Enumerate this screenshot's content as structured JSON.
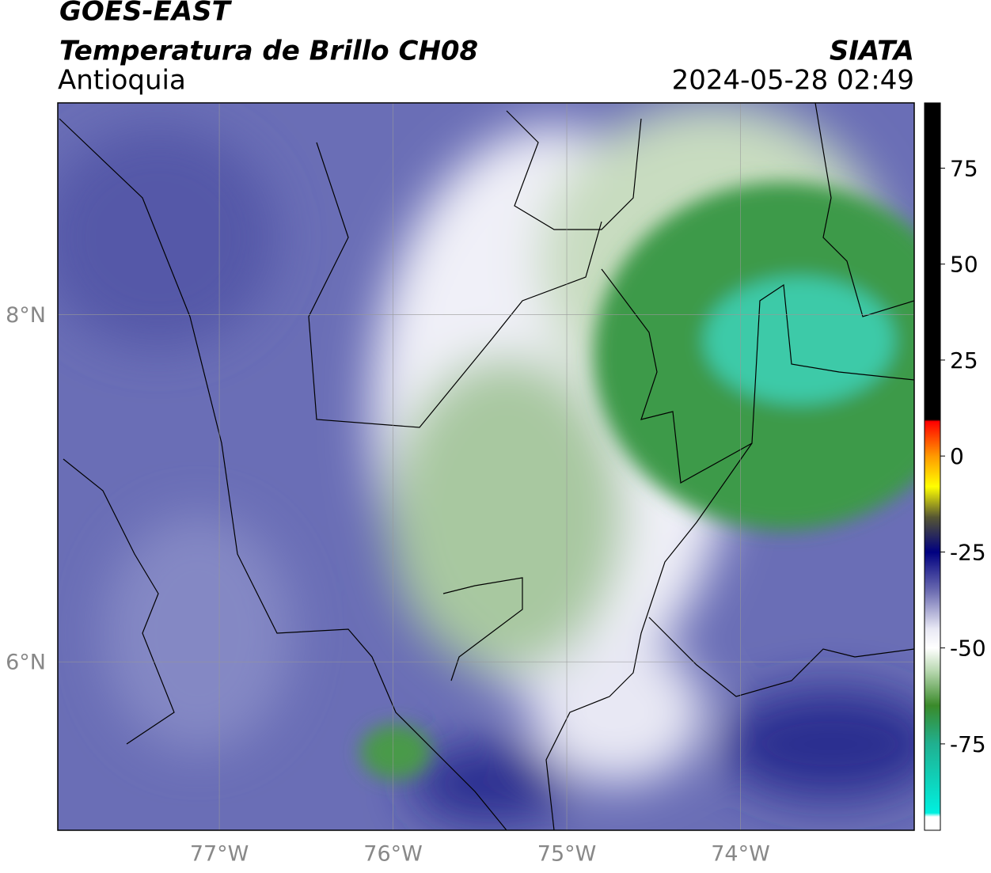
{
  "map": {
    "satellite": "GOES-EAST",
    "product": "Temperatura de Brillo CH08",
    "region": "Antioquia",
    "source": "SIATA",
    "datetime": "2024-05-28 02:49",
    "xlim": [
      -77.93,
      -73.0
    ],
    "ylim": [
      5.03,
      9.22
    ],
    "xticks": [
      {
        "value": -77,
        "label": "77°W"
      },
      {
        "value": -76,
        "label": "76°W"
      },
      {
        "value": -75,
        "label": "75°W"
      },
      {
        "value": -74,
        "label": "74°W"
      }
    ],
    "yticks": [
      {
        "value": 6,
        "label": "6°N"
      },
      {
        "value": 8,
        "label": "8°N"
      }
    ],
    "grid": true,
    "colorbar": {
      "lim": [
        -97.5,
        92
      ],
      "ticks": [
        -75,
        -50,
        -25,
        0,
        25,
        50,
        75
      ],
      "colormap": [
        [
          92,
          "#000000"
        ],
        [
          9.5,
          "#000000"
        ],
        [
          9,
          "#ff0000"
        ],
        [
          0,
          "#ff9900"
        ],
        [
          -8,
          "#ffff00"
        ],
        [
          -16,
          "#555533"
        ],
        [
          -25,
          "#000080"
        ],
        [
          -35,
          "#6a6ab0"
        ],
        [
          -45,
          "#e8e8f4"
        ],
        [
          -50,
          "#ffffff"
        ],
        [
          -56,
          "#b8d8b0"
        ],
        [
          -65,
          "#3a8a2a"
        ],
        [
          -75,
          "#20b090"
        ],
        [
          -93,
          "#00f0e0"
        ],
        [
          -94,
          "#ffffff"
        ],
        [
          -97.5,
          "#ffffff"
        ]
      ]
    }
  }
}
